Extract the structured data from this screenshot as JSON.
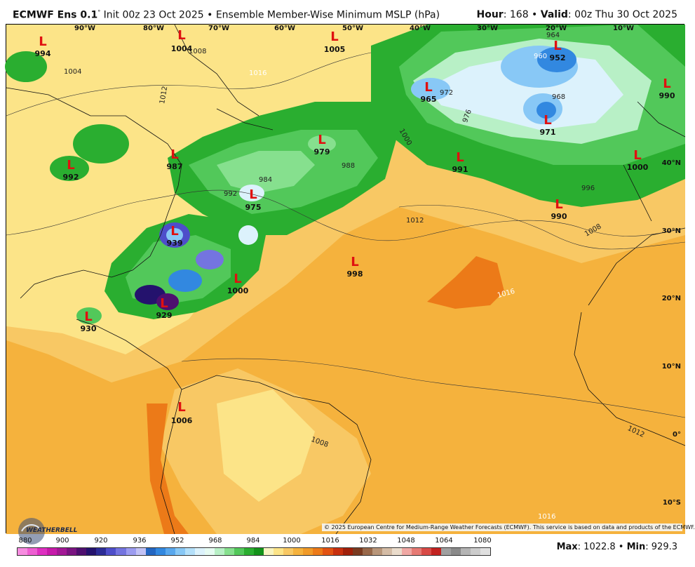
{
  "header": {
    "model": "ECMWF Ens 0.1",
    "init": "Init 00z 23 Oct 2025",
    "product": "Ensemble Member-Wise Minimum MSLP (hPa)",
    "hour_label": "Hour",
    "hour_value": ": 168",
    "valid_label": "Valid",
    "valid_value": ": 00z Thu 30 Oct 2025"
  },
  "lon_labels": [
    "90°W",
    "80°W",
    "70°W",
    "60°W",
    "50°W",
    "40°W",
    "30°W",
    "20°W",
    "10°W"
  ],
  "lat_labels": [
    "40°N",
    "30°N",
    "20°N",
    "10°N",
    "0°",
    "10°S"
  ],
  "lows": [
    {
      "value": "994"
    },
    {
      "value": "1004"
    },
    {
      "value": "1005"
    },
    {
      "value": "992"
    },
    {
      "value": "987"
    },
    {
      "value": "975"
    },
    {
      "value": "979"
    },
    {
      "value": "965"
    },
    {
      "value": "952"
    },
    {
      "value": "971"
    },
    {
      "value": "991"
    },
    {
      "value": "990"
    },
    {
      "value": "1000"
    },
    {
      "value": "990"
    },
    {
      "value": "939"
    },
    {
      "value": "1000"
    },
    {
      "value": "929"
    },
    {
      "value": "930"
    },
    {
      "value": "998"
    },
    {
      "value": "1006"
    }
  ],
  "isobar_labels": [
    "1016",
    "1012",
    "1008",
    "1004",
    "1000",
    "996",
    "992",
    "988",
    "984",
    "976",
    "972",
    "968",
    "964",
    "960",
    "1016",
    "1012",
    "1008",
    "1012",
    "1008",
    "1016"
  ],
  "copyright": "© 2025 European Centre for Medium-Range Weather Forecasts (ECMWF). This service is based on data and products of the ECMWF.",
  "logo_text": "WEATHERBELL",
  "colorbar": {
    "ticks": [
      "880",
      "900",
      "920",
      "936",
      "952",
      "968",
      "984",
      "1000",
      "1016",
      "1032",
      "1048",
      "1064",
      "1080"
    ],
    "colors": [
      "#f78ce0",
      "#ee5ed2",
      "#de2fc1",
      "#c61aaa",
      "#a31896",
      "#7a1481",
      "#4e0f6f",
      "#24126d",
      "#2c2c96",
      "#4e4eca",
      "#7474e0",
      "#9c9cf0",
      "#c2c2f5",
      "#2366c2",
      "#3288e0",
      "#59a8ee",
      "#88c8f6",
      "#b4e0fa",
      "#dcf2fc",
      "#e6fbf2",
      "#b8f0c6",
      "#86e08e",
      "#52c85a",
      "#2aae30",
      "#13921a",
      "#f8f4c0",
      "#fce488",
      "#f8c864",
      "#f5b23d",
      "#f09a28",
      "#ec7a18",
      "#e25212",
      "#c8300e",
      "#a0200a",
      "#7a3a20",
      "#98684a",
      "#b8967a",
      "#d4bca6",
      "#eadccc",
      "#f0a8a4",
      "#e67a74",
      "#d84a46",
      "#c22220",
      "#a0a0a0",
      "#8a8a8a",
      "#b4b4b4",
      "#cccccc",
      "#e0e0e0"
    ]
  },
  "stats": {
    "max_label": "Max",
    "max_value": ": 1022.8",
    "separator": " • ",
    "min_label": "Min",
    "min_value": ": 929.3"
  }
}
